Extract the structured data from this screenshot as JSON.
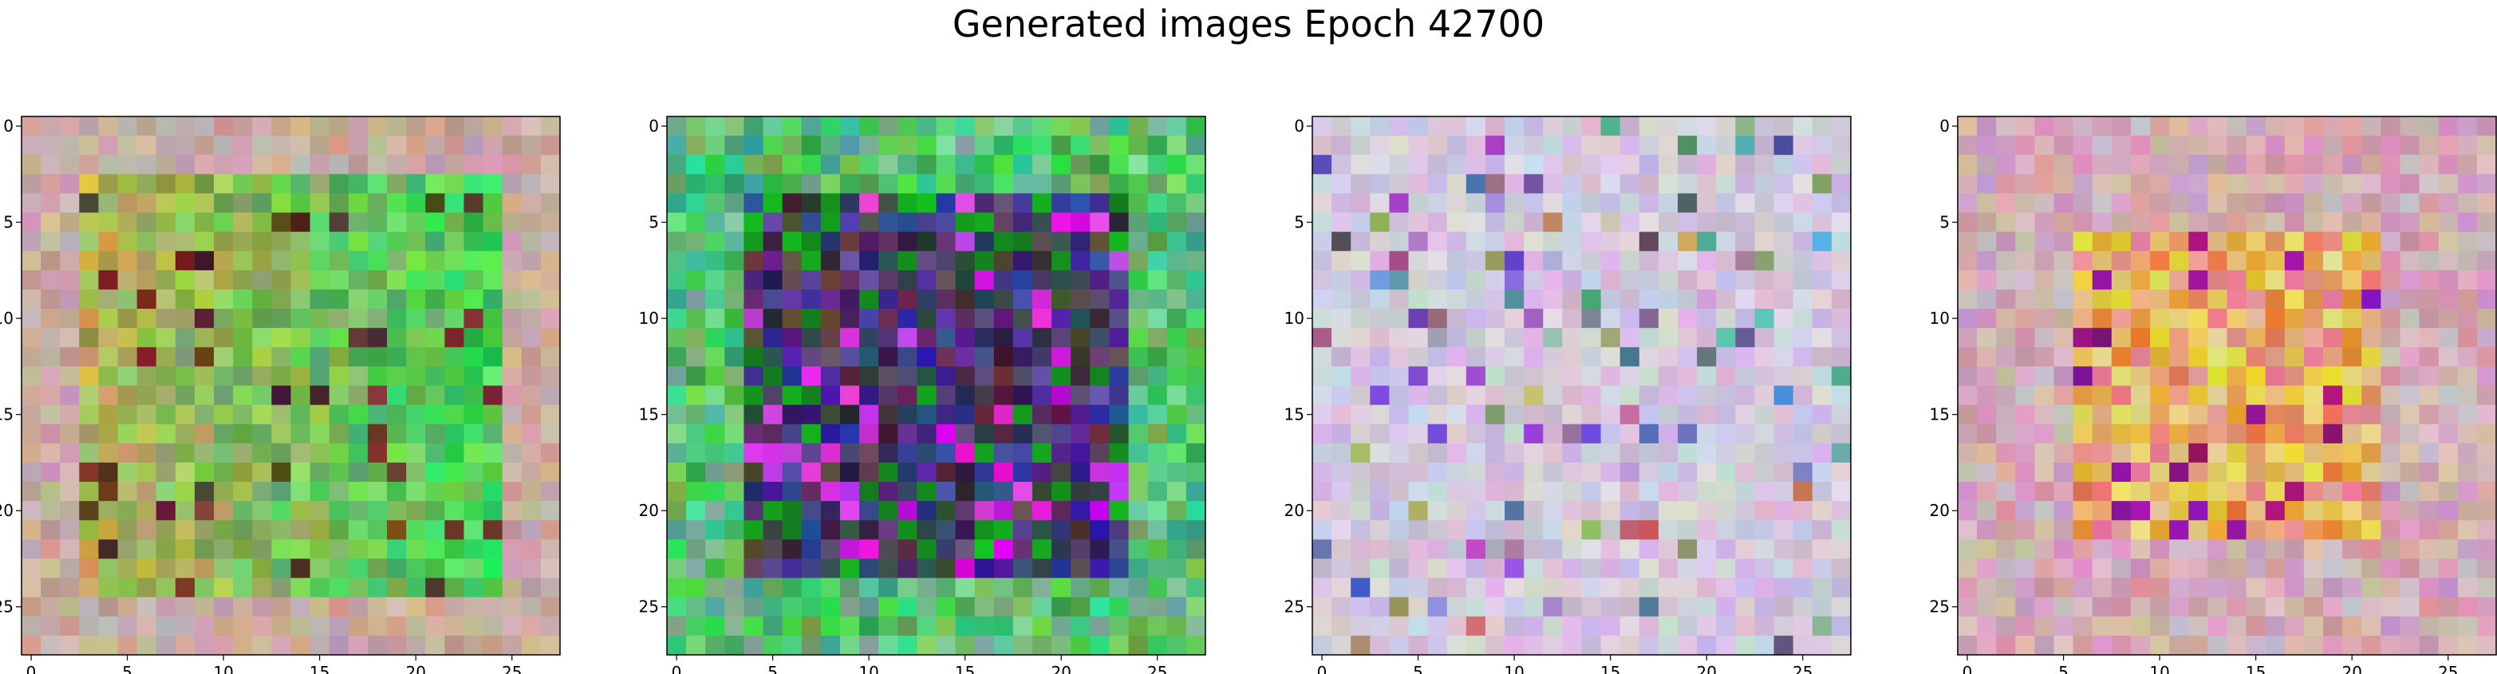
{
  "figure": {
    "title": "Generated images Epoch 42700"
  },
  "chart_data": [
    {
      "type": "heatmap",
      "palette": "greenish",
      "xlim": [
        0,
        27
      ],
      "ylim": [
        27,
        0
      ],
      "xticks": [
        "0",
        "5",
        "10",
        "15",
        "20",
        "25"
      ],
      "yticks": [
        "0",
        "5",
        "10",
        "15",
        "20",
        "25"
      ]
    },
    {
      "type": "heatmap",
      "palette": "dark-blue-green",
      "xlim": [
        0,
        27
      ],
      "ylim": [
        27,
        0
      ],
      "xticks": [
        "0",
        "5",
        "10",
        "15",
        "20",
        "25"
      ],
      "yticks": [
        "0",
        "5",
        "10",
        "15",
        "20",
        "25"
      ]
    },
    {
      "type": "heatmap",
      "palette": "pastel",
      "xlim": [
        0,
        27
      ],
      "ylim": [
        27,
        0
      ],
      "xticks": [
        "0",
        "5",
        "10",
        "15",
        "20",
        "25"
      ],
      "yticks": [
        "0",
        "5",
        "10",
        "15",
        "20",
        "25"
      ]
    },
    {
      "type": "heatmap",
      "palette": "warm",
      "xlim": [
        0,
        27
      ],
      "ylim": [
        27,
        0
      ],
      "xticks": [
        "0",
        "5",
        "10",
        "15",
        "20",
        "25"
      ],
      "yticks": [
        "0",
        "5",
        "10",
        "15",
        "20",
        "25"
      ]
    }
  ]
}
